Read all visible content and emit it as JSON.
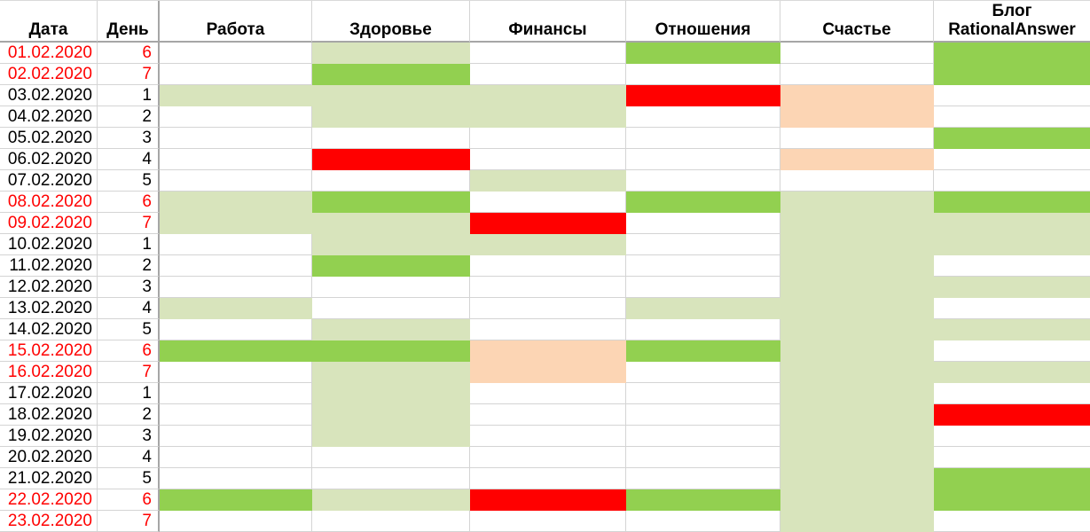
{
  "table": {
    "headers": [
      {
        "key": "date",
        "label": "Дата"
      },
      {
        "key": "day",
        "label": "День"
      },
      {
        "key": "work",
        "label": "Работа"
      },
      {
        "key": "health",
        "label": "Здоровье"
      },
      {
        "key": "finance",
        "label": "Финансы"
      },
      {
        "key": "relations",
        "label": "Отношения"
      },
      {
        "key": "happiness",
        "label": "Счастье"
      },
      {
        "key": "blog",
        "label": "Блог\nRationalAnswer"
      }
    ],
    "palette": {
      "bg": "#92D050",
      "lg": "#D8E4BC",
      "red": "#FF0000",
      "pe": "#FCD5B4",
      "white": "#FFFFFF",
      "weekend_text": "#FF0000",
      "weekday_text": "#000000",
      "gridline": "#D4D4D4",
      "heavy_border": "#A6A6A6"
    },
    "rows": [
      {
        "date": "01.02.2020",
        "day": "6",
        "weekend": true,
        "cells": [
          "",
          "lg",
          "",
          "bg",
          "",
          "bg"
        ]
      },
      {
        "date": "02.02.2020",
        "day": "7",
        "weekend": true,
        "cells": [
          "",
          "bg",
          "",
          "",
          "",
          "bg"
        ]
      },
      {
        "date": "03.02.2020",
        "day": "1",
        "weekend": false,
        "cells": [
          "lg",
          "lg",
          "lg",
          "red",
          "pe",
          ""
        ]
      },
      {
        "date": "04.02.2020",
        "day": "2",
        "weekend": false,
        "cells": [
          "",
          "lg",
          "lg",
          "",
          "pe",
          ""
        ]
      },
      {
        "date": "05.02.2020",
        "day": "3",
        "weekend": false,
        "cells": [
          "",
          "",
          "",
          "",
          "",
          "bg"
        ]
      },
      {
        "date": "06.02.2020",
        "day": "4",
        "weekend": false,
        "cells": [
          "",
          "red",
          "",
          "",
          "pe",
          ""
        ]
      },
      {
        "date": "07.02.2020",
        "day": "5",
        "weekend": false,
        "cells": [
          "",
          "",
          "lg",
          "",
          "",
          ""
        ]
      },
      {
        "date": "08.02.2020",
        "day": "6",
        "weekend": true,
        "cells": [
          "lg",
          "bg",
          "",
          "bg",
          "lg",
          "bg"
        ]
      },
      {
        "date": "09.02.2020",
        "day": "7",
        "weekend": true,
        "cells": [
          "lg",
          "lg",
          "red",
          "",
          "lg",
          "lg"
        ]
      },
      {
        "date": "10.02.2020",
        "day": "1",
        "weekend": false,
        "cells": [
          "",
          "lg",
          "lg",
          "",
          "lg",
          "lg"
        ]
      },
      {
        "date": "11.02.2020",
        "day": "2",
        "weekend": false,
        "cells": [
          "",
          "bg",
          "",
          "",
          "lg",
          ""
        ]
      },
      {
        "date": "12.02.2020",
        "day": "3",
        "weekend": false,
        "cells": [
          "",
          "",
          "",
          "",
          "lg",
          "lg"
        ]
      },
      {
        "date": "13.02.2020",
        "day": "4",
        "weekend": false,
        "cells": [
          "lg",
          "",
          "",
          "lg",
          "lg",
          ""
        ]
      },
      {
        "date": "14.02.2020",
        "day": "5",
        "weekend": false,
        "cells": [
          "",
          "lg",
          "",
          "",
          "lg",
          "lg"
        ]
      },
      {
        "date": "15.02.2020",
        "day": "6",
        "weekend": true,
        "cells": [
          "bg",
          "bg",
          "pe",
          "bg",
          "lg",
          ""
        ]
      },
      {
        "date": "16.02.2020",
        "day": "7",
        "weekend": true,
        "cells": [
          "",
          "lg",
          "pe",
          "",
          "lg",
          "lg"
        ]
      },
      {
        "date": "17.02.2020",
        "day": "1",
        "weekend": false,
        "cells": [
          "",
          "lg",
          "",
          "",
          "lg",
          ""
        ]
      },
      {
        "date": "18.02.2020",
        "day": "2",
        "weekend": false,
        "cells": [
          "",
          "lg",
          "",
          "",
          "lg",
          "red"
        ]
      },
      {
        "date": "19.02.2020",
        "day": "3",
        "weekend": false,
        "cells": [
          "",
          "lg",
          "",
          "",
          "lg",
          ""
        ]
      },
      {
        "date": "20.02.2020",
        "day": "4",
        "weekend": false,
        "cells": [
          "",
          "",
          "",
          "",
          "lg",
          ""
        ]
      },
      {
        "date": "21.02.2020",
        "day": "5",
        "weekend": false,
        "cells": [
          "",
          "",
          "",
          "",
          "lg",
          "bg"
        ]
      },
      {
        "date": "22.02.2020",
        "day": "6",
        "weekend": true,
        "cells": [
          "bg",
          "lg",
          "red",
          "bg",
          "lg",
          "bg"
        ]
      },
      {
        "date": "23.02.2020",
        "day": "7",
        "weekend": true,
        "cells": [
          "",
          "",
          "",
          "",
          "lg",
          ""
        ]
      }
    ]
  }
}
